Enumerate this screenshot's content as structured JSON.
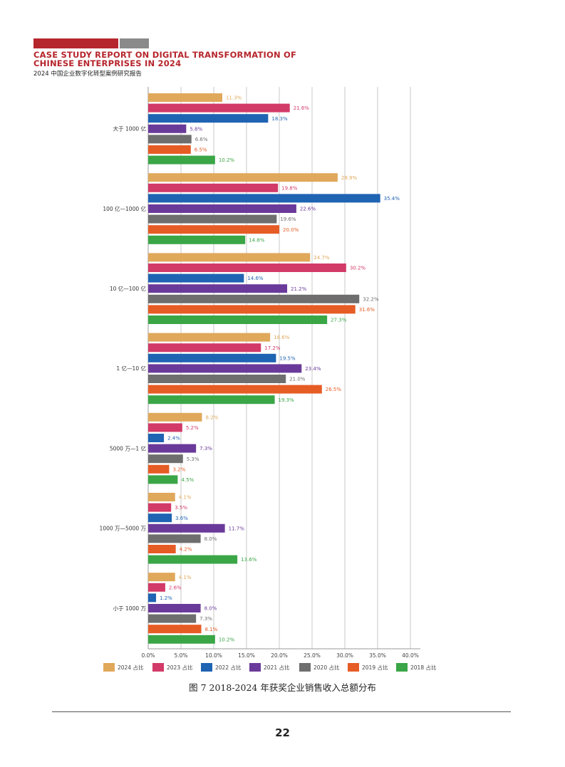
{
  "header": {
    "title": "CASE STUDY REPORT ON DIGITAL TRANSFORMATION OF CHINESE ENTERPRISES IN 2024",
    "subtitle": "2024 中国企业数字化转型案例研究报告",
    "accent_color": "#b6262d",
    "bar_gray_color": "#8a8a8a"
  },
  "chart_data": {
    "type": "bar",
    "orientation": "horizontal",
    "categories": [
      "大于 1000 亿",
      "100 亿—1000 亿",
      "10 亿—100 亿",
      "1 亿—10 亿",
      "5000 万—1 亿",
      "1000 万—5000 万",
      "小于 1000 万"
    ],
    "series": [
      {
        "name": "2024 占比",
        "color": "#e0a85a",
        "values": [
          11.3,
          28.9,
          24.7,
          18.6,
          8.2,
          4.1,
          4.1
        ],
        "labels": [
          "11.3%",
          "28.9%",
          "24.7%",
          "18.6%",
          "8.2%",
          "4.1%",
          "4.1%"
        ]
      },
      {
        "name": "2023 占比",
        "color": "#d23a68",
        "values": [
          21.6,
          19.8,
          30.2,
          17.2,
          5.2,
          3.5,
          2.6
        ],
        "labels": [
          "21.6%",
          "19.8%",
          "30.2%",
          "17.2%",
          "5.2%",
          "3.5%",
          "2.6%"
        ]
      },
      {
        "name": "2022 占比",
        "color": "#1f63b3",
        "values": [
          18.3,
          35.4,
          14.6,
          19.5,
          2.4,
          3.6,
          1.2
        ],
        "labels": [
          "18.3%",
          "35.4%",
          "14.6%",
          "19.5%",
          "2.4%",
          "3.6%",
          "1.2%"
        ]
      },
      {
        "name": "2021 占比",
        "color": "#6a3a9a",
        "values": [
          5.8,
          22.6,
          21.2,
          23.4,
          7.3,
          11.7,
          8.0
        ],
        "labels": [
          "5.8%",
          "22.6%",
          "21.2%",
          "23.4%",
          "7.3%",
          "11.7%",
          "8.0%"
        ]
      },
      {
        "name": "2020 占比",
        "color": "#6e6e6e",
        "values": [
          6.6,
          19.6,
          32.2,
          21.0,
          5.3,
          8.0,
          7.3
        ],
        "labels": [
          "6.6%",
          "19.6%",
          "32.2%",
          "21.0%",
          "5.3%",
          "8.0%",
          "7.3%"
        ]
      },
      {
        "name": "2019 占比",
        "color": "#e65c25",
        "values": [
          6.5,
          20.0,
          31.6,
          26.5,
          3.2,
          4.2,
          8.1
        ],
        "labels": [
          "6.5%",
          "20.0%",
          "31.6%",
          "26.5%",
          "3.2%",
          "4.2%",
          "8.1%"
        ]
      },
      {
        "name": "2018 占比",
        "color": "#3aa646",
        "values": [
          10.2,
          14.8,
          27.3,
          19.3,
          4.5,
          13.6,
          10.2
        ],
        "labels": [
          "10.2%",
          "14.8%",
          "27.3%",
          "19.3%",
          "4.5%",
          "13.6%",
          "10.2%"
        ]
      }
    ],
    "xticks": [
      "0.0%",
      "5.0%",
      "10.0%",
      "15.0%",
      "20.0%",
      "25.0%",
      "30.0%",
      "35.0%",
      "40.0%"
    ],
    "xlim": [
      0,
      40
    ],
    "grid": true,
    "legend_position": "bottom",
    "caption": "图 7  2018-2024 年获奖企业销售收入总额分布"
  },
  "footer": {
    "page_number": "22"
  }
}
